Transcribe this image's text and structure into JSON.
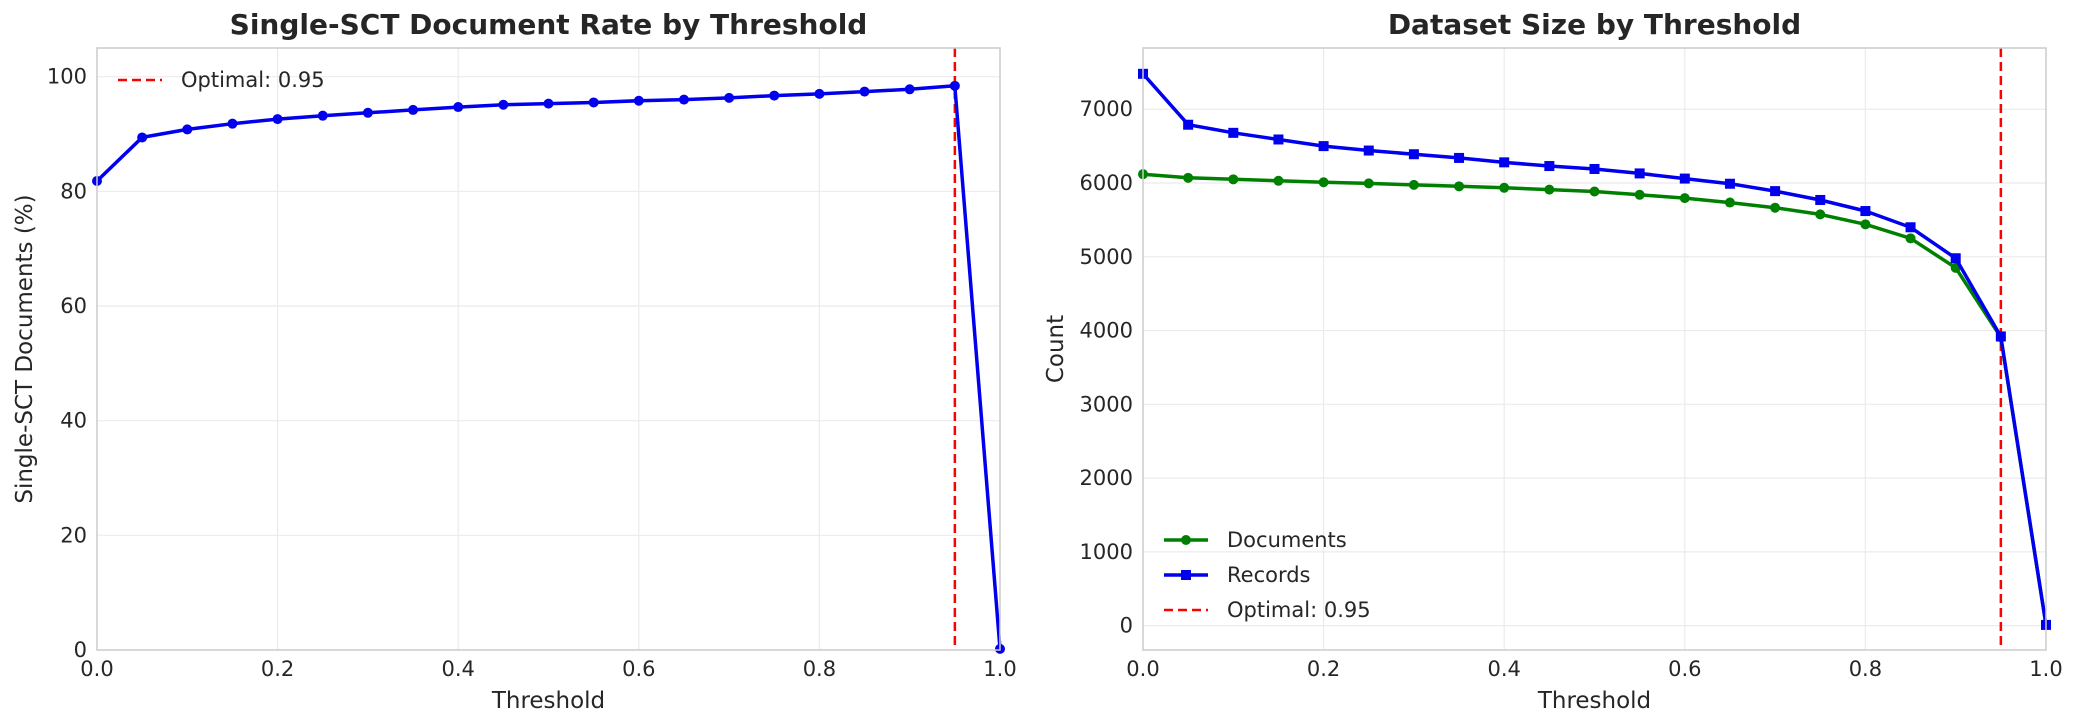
{
  "figure": {
    "colors": {
      "background": "#ffffff",
      "grid": "#ebebeb",
      "axis_frame": "#cccccc",
      "text": "#262626",
      "optimal_line": "#ff0000"
    }
  },
  "chart_data": [
    {
      "type": "line",
      "title": "Single-SCT Document Rate by Threshold",
      "xlabel": "Threshold",
      "ylabel": "Single-SCT Documents (%)",
      "xlim": [
        0.0,
        1.0
      ],
      "ylim": [
        0,
        105
      ],
      "xticks": [
        0.0,
        0.2,
        0.4,
        0.6,
        0.8,
        1.0
      ],
      "xtick_labels": [
        "0.0",
        "0.2",
        "0.4",
        "0.6",
        "0.8",
        "1.0"
      ],
      "yticks": [
        0,
        20,
        40,
        60,
        80,
        100
      ],
      "ytick_labels": [
        "0",
        "20",
        "40",
        "60",
        "80",
        "100"
      ],
      "grid": true,
      "legend_position": "top-left",
      "series": [
        {
          "color": "#0000ee",
          "marker": "circle",
          "x": [
            0.0,
            0.05,
            0.1,
            0.15,
            0.2,
            0.25,
            0.3,
            0.35,
            0.4,
            0.45,
            0.5,
            0.55,
            0.6,
            0.65,
            0.7,
            0.75,
            0.8,
            0.85,
            0.9,
            0.95,
            1.0
          ],
          "values": [
            81.8,
            89.4,
            90.8,
            91.8,
            92.6,
            93.2,
            93.7,
            94.2,
            94.7,
            95.1,
            95.3,
            95.5,
            95.8,
            96.0,
            96.3,
            96.7,
            97.0,
            97.4,
            97.8,
            98.4,
            0.2
          ]
        }
      ],
      "vlines": [
        {
          "x": 0.95,
          "label": "Optimal: 0.95",
          "color": "#ff0000",
          "style": "dashed"
        }
      ]
    },
    {
      "type": "line",
      "title": "Dataset Size by Threshold",
      "xlabel": "Threshold",
      "ylabel": "Count",
      "xlim": [
        0.0,
        1.0
      ],
      "ylim": [
        -330,
        7830
      ],
      "xticks": [
        0.0,
        0.2,
        0.4,
        0.6,
        0.8,
        1.0
      ],
      "xtick_labels": [
        "0.0",
        "0.2",
        "0.4",
        "0.6",
        "0.8",
        "1.0"
      ],
      "yticks": [
        0,
        1000,
        2000,
        3000,
        4000,
        5000,
        6000,
        7000
      ],
      "ytick_labels": [
        "0",
        "1000",
        "2000",
        "3000",
        "4000",
        "5000",
        "6000",
        "7000"
      ],
      "grid": true,
      "legend_position": "bottom-left",
      "series": [
        {
          "name": "Documents",
          "color": "#008000",
          "marker": "circle",
          "x": [
            0.0,
            0.05,
            0.1,
            0.15,
            0.2,
            0.25,
            0.3,
            0.35,
            0.4,
            0.45,
            0.5,
            0.55,
            0.6,
            0.65,
            0.7,
            0.75,
            0.8,
            0.85,
            0.9,
            0.95,
            1.0
          ],
          "values": [
            6120,
            6070,
            6050,
            6030,
            6010,
            5995,
            5975,
            5955,
            5935,
            5910,
            5885,
            5840,
            5795,
            5735,
            5665,
            5575,
            5440,
            5250,
            4850,
            3910,
            10
          ]
        },
        {
          "name": "Records",
          "color": "#0000ee",
          "marker": "square",
          "x": [
            0.0,
            0.05,
            0.1,
            0.15,
            0.2,
            0.25,
            0.3,
            0.35,
            0.4,
            0.45,
            0.5,
            0.55,
            0.6,
            0.65,
            0.7,
            0.75,
            0.8,
            0.85,
            0.9,
            0.95,
            1.0
          ],
          "values": [
            7480,
            6790,
            6680,
            6590,
            6500,
            6440,
            6390,
            6340,
            6280,
            6230,
            6190,
            6130,
            6060,
            5990,
            5890,
            5770,
            5620,
            5400,
            4980,
            3920,
            10
          ]
        }
      ],
      "vlines": [
        {
          "x": 0.95,
          "label": "Optimal: 0.95",
          "color": "#ff0000",
          "style": "dashed"
        }
      ]
    }
  ]
}
